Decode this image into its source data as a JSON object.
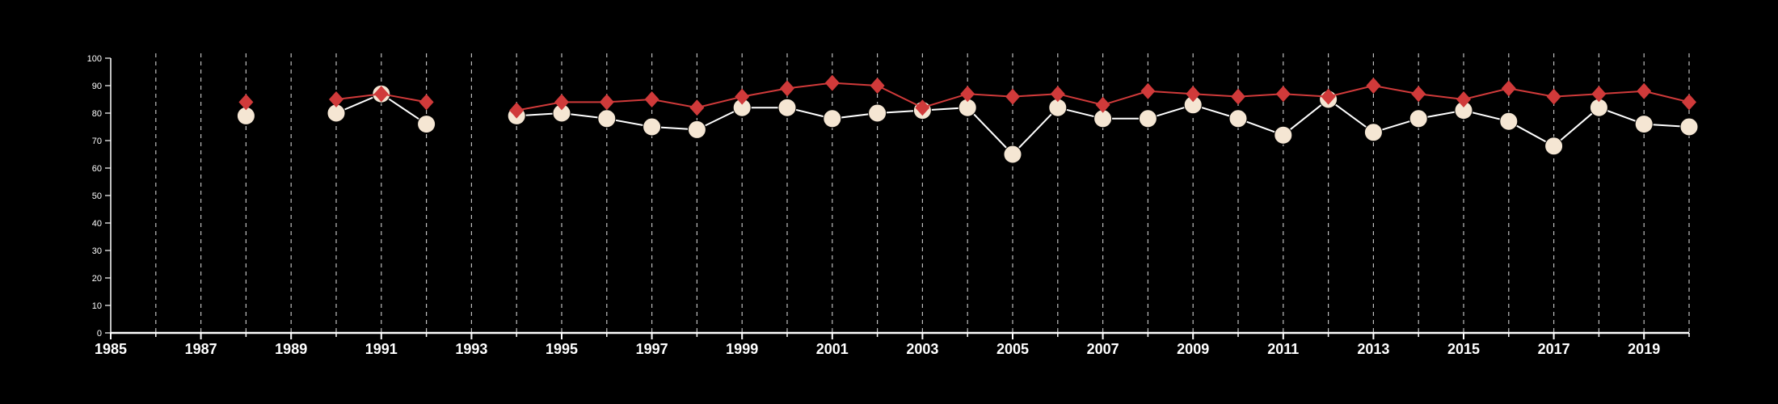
{
  "chart_data": {
    "type": "line",
    "title": "",
    "xlabel": "",
    "ylabel": "",
    "xlim": [
      1985,
      2020
    ],
    "ylim": [
      0,
      100
    ],
    "grid": "vertical dashed lines at each year",
    "legend": "none",
    "background_color": "#000000",
    "axis_color": "#ffffff",
    "grid_color": "#bfbfbf",
    "x_ticks": [
      1985,
      1987,
      1989,
      1991,
      1993,
      1995,
      1997,
      1999,
      2001,
      2003,
      2005,
      2007,
      2009,
      2011,
      2013,
      2015,
      2017,
      2019
    ],
    "y_ticks": [
      0,
      10,
      20,
      30,
      40,
      50,
      60,
      70,
      80,
      90,
      100
    ],
    "series": [
      {
        "color": "#d03a3a",
        "marker": "diamond",
        "points": [
          {
            "x": 1988,
            "y": 84
          },
          {
            "x": 1990,
            "y": 85
          },
          {
            "x": 1991,
            "y": 87
          },
          {
            "x": 1992,
            "y": 84
          },
          {
            "x": 1994,
            "y": 81
          },
          {
            "x": 1995,
            "y": 84
          },
          {
            "x": 1996,
            "y": 84
          },
          {
            "x": 1997,
            "y": 85
          },
          {
            "x": 1998,
            "y": 82
          },
          {
            "x": 1999,
            "y": 86
          },
          {
            "x": 2000,
            "y": 89
          },
          {
            "x": 2001,
            "y": 91
          },
          {
            "x": 2002,
            "y": 90
          },
          {
            "x": 2003,
            "y": 82
          },
          {
            "x": 2004,
            "y": 87
          },
          {
            "x": 2005,
            "y": 86
          },
          {
            "x": 2006,
            "y": 87
          },
          {
            "x": 2007,
            "y": 83
          },
          {
            "x": 2008,
            "y": 88
          },
          {
            "x": 2009,
            "y": 87
          },
          {
            "x": 2010,
            "y": 86
          },
          {
            "x": 2011,
            "y": 87
          },
          {
            "x": 2012,
            "y": 86
          },
          {
            "x": 2013,
            "y": 90
          },
          {
            "x": 2014,
            "y": 87
          },
          {
            "x": 2015,
            "y": 85
          },
          {
            "x": 2016,
            "y": 89
          },
          {
            "x": 2017,
            "y": 86
          },
          {
            "x": 2018,
            "y": 87
          },
          {
            "x": 2019,
            "y": 88
          },
          {
            "x": 2020,
            "y": 84
          }
        ],
        "segments": [
          [
            1990,
            1992
          ],
          [
            1994,
            2020
          ]
        ]
      },
      {
        "color": "#f5e6d3",
        "line_color": "#ffffff",
        "marker": "circle",
        "points": [
          {
            "x": 1988,
            "y": 79
          },
          {
            "x": 1990,
            "y": 80
          },
          {
            "x": 1991,
            "y": 87
          },
          {
            "x": 1992,
            "y": 76
          },
          {
            "x": 1994,
            "y": 79
          },
          {
            "x": 1995,
            "y": 80
          },
          {
            "x": 1996,
            "y": 78
          },
          {
            "x": 1997,
            "y": 75
          },
          {
            "x": 1998,
            "y": 74
          },
          {
            "x": 1999,
            "y": 82
          },
          {
            "x": 2000,
            "y": 82
          },
          {
            "x": 2001,
            "y": 78
          },
          {
            "x": 2002,
            "y": 80
          },
          {
            "x": 2003,
            "y": 81
          },
          {
            "x": 2004,
            "y": 82
          },
          {
            "x": 2005,
            "y": 65
          },
          {
            "x": 2006,
            "y": 82
          },
          {
            "x": 2007,
            "y": 78
          },
          {
            "x": 2008,
            "y": 78
          },
          {
            "x": 2009,
            "y": 83
          },
          {
            "x": 2010,
            "y": 78
          },
          {
            "x": 2011,
            "y": 72
          },
          {
            "x": 2012,
            "y": 85
          },
          {
            "x": 2013,
            "y": 73
          },
          {
            "x": 2014,
            "y": 78
          },
          {
            "x": 2015,
            "y": 81
          },
          {
            "x": 2016,
            "y": 77
          },
          {
            "x": 2017,
            "y": 68
          },
          {
            "x": 2018,
            "y": 82
          },
          {
            "x": 2019,
            "y": 76
          },
          {
            "x": 2020,
            "y": 75
          }
        ],
        "segments": [
          [
            1990,
            1992
          ],
          [
            1994,
            2020
          ]
        ]
      }
    ]
  }
}
